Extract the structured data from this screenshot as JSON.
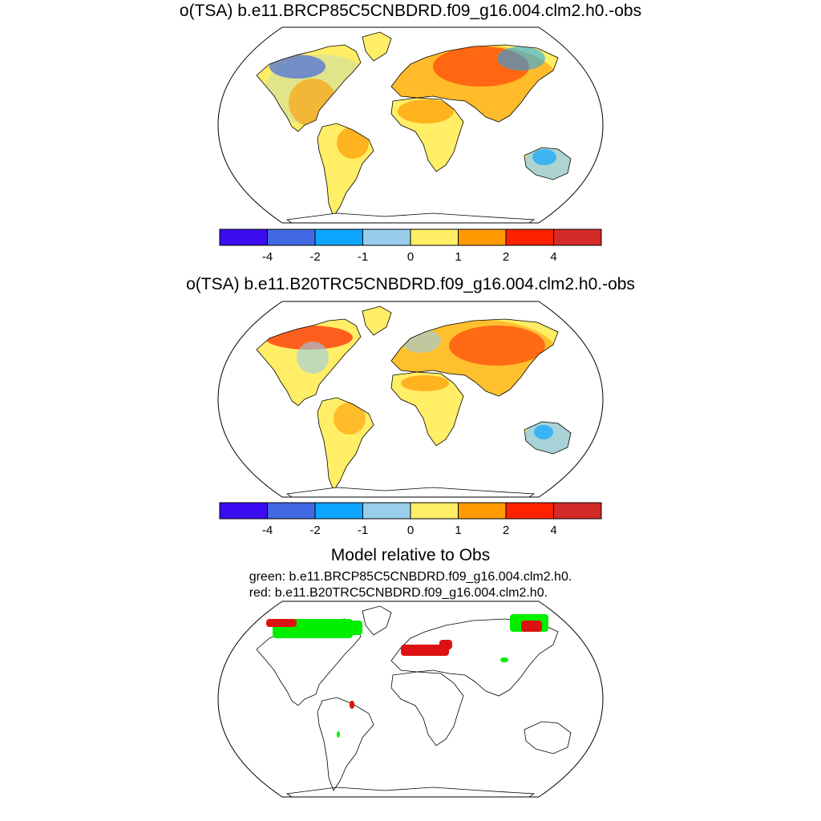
{
  "panels": [
    {
      "title": "o(TSA) b.e11.BRCP85C5CNBDRD.f09_g16.004.clm2.h0.-obs"
    },
    {
      "title": "o(TSA) b.e11.B20TRC5CNBDRD.f09_g16.004.clm2.h0.-obs"
    }
  ],
  "comparison": {
    "title": "Model relative to Obs",
    "legend_green": "green: b.e11.BRCP85C5CNBDRD.f09_g16.004.clm2.h0.",
    "legend_red": "red: b.e11.B20TRC5CNBDRD.f09_g16.004.clm2.h0.",
    "colors": {
      "green": "#00ee00",
      "red": "#dd1111"
    }
  },
  "colorbar": {
    "colors": [
      "#3b0df0",
      "#4169e1",
      "#0ea5ff",
      "#98cdeb",
      "#ffee66",
      "#ff9a00",
      "#ff2200",
      "#d42a2a"
    ],
    "labels": [
      "-4",
      "-2",
      "-1",
      "0",
      "1",
      "2",
      "4"
    ]
  }
}
